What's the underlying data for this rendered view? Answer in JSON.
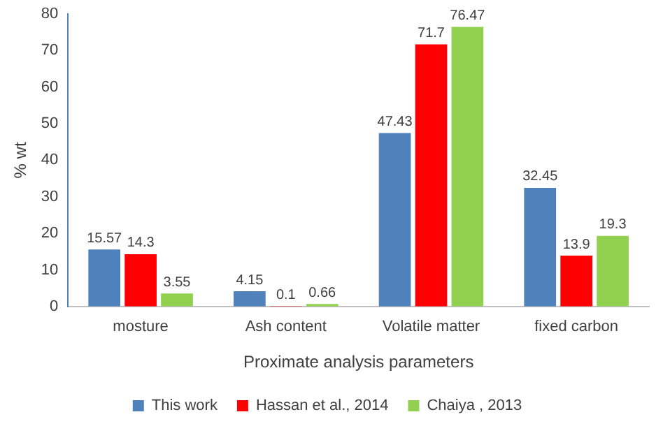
{
  "chart_data": {
    "type": "bar",
    "xlabel": "Proximate analysis parameters",
    "ylabel": "% wt",
    "categories": [
      "mosture",
      "Ash content",
      "Volatile matter",
      "fixed carbon"
    ],
    "series": [
      {
        "name": "This work",
        "color": "#4f81bd",
        "values": [
          15.57,
          4.15,
          47.43,
          32.45
        ]
      },
      {
        "name": "Hassan et al., 2014",
        "color": "#ff0000",
        "values": [
          14.3,
          0.1,
          71.7,
          13.9
        ]
      },
      {
        "name": "Chaiya , 2013",
        "color": "#92d050",
        "values": [
          3.55,
          0.66,
          76.47,
          19.3
        ]
      }
    ],
    "ylim": [
      0,
      80
    ],
    "yticks": [
      0,
      10,
      20,
      30,
      40,
      50,
      60,
      70,
      80
    ],
    "grid": false,
    "legend": "bottom",
    "data_labels": true
  }
}
